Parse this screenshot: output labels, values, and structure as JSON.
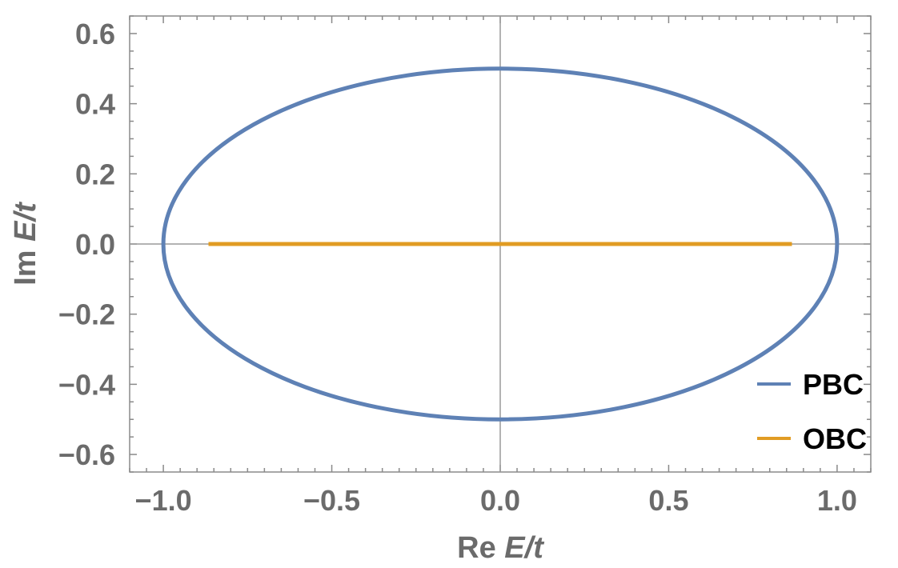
{
  "chart_data": {
    "type": "line",
    "xlabel_prefix": "Re",
    "ylabel_prefix": "Im",
    "label_var": "E",
    "label_den": "/t",
    "xlim": [
      -1.1,
      1.1
    ],
    "ylim": [
      -0.65,
      0.65
    ],
    "xticks": [
      -1.0,
      -0.5,
      0.0,
      0.5,
      1.0
    ],
    "xtick_labels": [
      "−1.0",
      "−0.5",
      "0.0",
      "0.5",
      "1.0"
    ],
    "yticks": [
      -0.6,
      -0.4,
      -0.2,
      0.0,
      0.2,
      0.4,
      0.6
    ],
    "ytick_labels": [
      "−0.6",
      "−0.4",
      "−0.2",
      "0.0",
      "0.2",
      "0.4",
      "0.6"
    ],
    "legend_position": "bottom-right",
    "series": [
      {
        "name": "PBC",
        "color": "#5e81b5",
        "shape": "ellipse",
        "center": [
          0.0,
          0.0
        ],
        "semi_axes": [
          1.0,
          0.5
        ]
      },
      {
        "name": "OBC",
        "color": "#e19c24",
        "shape": "segment",
        "x": [
          -0.866,
          0.866
        ],
        "y": [
          0.0,
          0.0
        ]
      }
    ]
  }
}
